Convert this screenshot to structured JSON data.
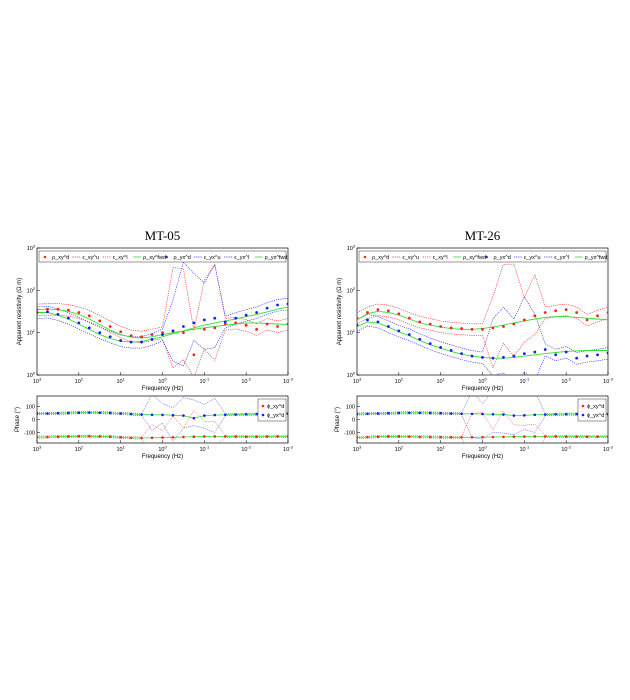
{
  "figure": {
    "colors": {
      "xy": "#ff2020",
      "yx": "#1a1aff",
      "fwd": "#33dd33"
    },
    "panels": [
      {
        "title": "MT-05"
      },
      {
        "title": "MT-26"
      }
    ]
  },
  "chart_data": [
    {
      "type": "scatter",
      "title": "MT-05",
      "subplot": "resistivity",
      "xlabel": "Frequency (Hz)",
      "ylabel": "Apparent resistivity (Ω m)",
      "xscale": "log",
      "xdirection": "decreasing",
      "xlim": [
        1000,
        0.001
      ],
      "ylim": [
        1,
        1000
      ],
      "yscale": "log",
      "xticks": [
        "10^3",
        "10^2",
        "10^1",
        "10^0",
        "10^-1",
        "10^-2",
        "10^-3"
      ],
      "yticks": [
        "10^0",
        "10^1",
        "10^2",
        "10^3"
      ],
      "legend": [
        "ρ_xy^d",
        "ϵ_xy^u",
        "ϵ_xy^l",
        "ρ_xy^fwd",
        "ρ_yx^d",
        "ϵ_yx^u",
        "ϵ_yx^l",
        "ρ_yx^fwd"
      ],
      "legend_position": "top",
      "x": [
        1000,
        562,
        316,
        178,
        100,
        56.2,
        31.6,
        17.8,
        10,
        5.62,
        3.16,
        1.78,
        1,
        0.562,
        0.316,
        0.178,
        0.1,
        0.0562,
        0.0316,
        0.0178,
        0.01,
        0.00562,
        0.00316,
        0.00178,
        0.001
      ],
      "series": [
        {
          "name": "ρ_xy^d",
          "values": [
            35,
            36,
            36,
            34,
            30,
            25,
            19,
            14,
            10.5,
            8.5,
            8,
            9,
            10,
            11,
            10,
            3,
            12,
            13,
            16,
            17,
            15,
            12,
            16,
            14,
            16
          ]
        },
        {
          "name": "ρ_xy^fwd",
          "values": [
            35,
            36,
            35,
            32,
            27,
            21,
            15.5,
            11.5,
            9,
            7.8,
            7.5,
            8,
            9,
            10,
            11,
            12,
            13,
            14,
            15,
            16,
            17,
            17,
            16.5,
            16,
            15.5
          ]
        },
        {
          "name": "ρ_yx^d",
          "values": [
            30,
            31,
            27,
            22,
            17,
            13,
            10,
            8,
            6.5,
            6,
            6,
            7,
            9,
            11,
            14,
            17,
            20,
            22,
            18,
            22,
            26,
            30,
            38,
            45,
            48
          ]
        },
        {
          "name": "ρ_yx^fwd",
          "values": [
            30,
            30,
            26,
            21,
            16,
            12,
            9,
            7.3,
            6.3,
            6,
            6.2,
            7,
            8,
            9.5,
            11,
            13,
            15,
            17,
            19,
            21,
            24,
            27,
            31,
            36,
            40
          ]
        }
      ]
    },
    {
      "type": "scatter",
      "title": "MT-05",
      "subplot": "phase",
      "xlabel": "Frequency (Hz)",
      "ylabel": "Phase (°)",
      "xscale": "log",
      "xdirection": "decreasing",
      "xlim": [
        1000,
        0.001
      ],
      "ylim": [
        -180,
        180
      ],
      "xticks": [
        "10^3",
        "10^2",
        "10^1",
        "10^0",
        "10^-1",
        "10^-2",
        "10^-3"
      ],
      "yticks": [
        "-100",
        "0",
        "100"
      ],
      "legend": [
        "ϕ_xy^d",
        "ϕ_yx^d"
      ],
      "legend_position": "top-right",
      "x": [
        1000,
        562,
        316,
        178,
        100,
        56.2,
        31.6,
        17.8,
        10,
        5.62,
        3.16,
        1.78,
        1,
        0.562,
        0.316,
        0.178,
        0.1,
        0.0562,
        0.0316,
        0.0178,
        0.01,
        0.00562,
        0.00316,
        0.00178,
        0.001
      ],
      "series": [
        {
          "name": "ϕ_xy^d",
          "values": [
            -135,
            -134,
            -132,
            -130,
            -128,
            -128,
            -130,
            -132,
            -136,
            -140,
            -142,
            -140,
            -138,
            -136,
            -134,
            -132,
            -130,
            -130,
            -130,
            -131,
            -132,
            -132,
            -131,
            -130,
            -130
          ]
        },
        {
          "name": "ϕ_yx^d",
          "values": [
            45,
            46,
            48,
            50,
            52,
            53,
            52,
            50,
            46,
            42,
            38,
            36,
            35,
            33,
            30,
            10,
            30,
            34,
            36,
            38,
            40,
            42,
            44,
            45,
            45
          ]
        }
      ]
    },
    {
      "type": "scatter",
      "title": "MT-26",
      "subplot": "resistivity",
      "xlabel": "Frequency (Hz)",
      "ylabel": "Apparent resistivity (Ω m)",
      "xscale": "log",
      "xdirection": "decreasing",
      "xlim": [
        1000,
        0.001
      ],
      "ylim": [
        1,
        1000
      ],
      "yscale": "log",
      "xticks": [
        "10^3",
        "10^2",
        "10^1",
        "10^0",
        "10^-1",
        "10^-2",
        "10^-3"
      ],
      "yticks": [
        "10^0",
        "10^1",
        "10^2",
        "10^3"
      ],
      "legend": [
        "ρ_xy^d",
        "ϵ_xy^u",
        "ϵ_xy^l",
        "ρ_xy^fwd",
        "ρ_yx^d",
        "ϵ_yx^u",
        "ϵ_yx^l",
        "ρ_yx^fwd"
      ],
      "legend_position": "top",
      "x": [
        1000,
        562,
        316,
        178,
        100,
        56.2,
        31.6,
        17.8,
        10,
        5.62,
        3.16,
        1.78,
        1,
        0.562,
        0.316,
        0.178,
        0.1,
        0.0562,
        0.0316,
        0.0178,
        0.01,
        0.00562,
        0.00316,
        0.00178,
        0.001
      ],
      "series": [
        {
          "name": "ρ_xy^d",
          "values": [
            22,
            30,
            35,
            33,
            28,
            22,
            18,
            16,
            14,
            13,
            12.5,
            12,
            12,
            13,
            14,
            16,
            20,
            25,
            30,
            33,
            35,
            30,
            20,
            25,
            30
          ]
        },
        {
          "name": "ρ_xy^fwd",
          "values": [
            20,
            28,
            32,
            30,
            26,
            21,
            17,
            15,
            13.5,
            12.5,
            12,
            12,
            12.5,
            13.5,
            15,
            17,
            19,
            21,
            23,
            24,
            24,
            23,
            22,
            21,
            20
          ]
        },
        {
          "name": "ρ_yx^d",
          "values": [
            15,
            20,
            18,
            14,
            11,
            9,
            7,
            5.5,
            4.5,
            3.8,
            3.2,
            2.8,
            2.6,
            2.5,
            2.6,
            2.8,
            3.2,
            3.5,
            4,
            3,
            3.5,
            2.5,
            2.8,
            3,
            3.3
          ]
        },
        {
          "name": "ρ_yx^fwd",
          "values": [
            14,
            18,
            17,
            13.5,
            10.5,
            8.5,
            6.5,
            5.2,
            4.3,
            3.6,
            3.1,
            2.8,
            2.6,
            2.5,
            2.5,
            2.6,
            2.8,
            3,
            3.2,
            3.4,
            3.6,
            3.7,
            3.8,
            3.8,
            3.8
          ]
        }
      ]
    },
    {
      "type": "scatter",
      "title": "MT-26",
      "subplot": "phase",
      "xlabel": "Frequency (Hz)",
      "ylabel": "Phase (°)",
      "xscale": "log",
      "xdirection": "decreasing",
      "xlim": [
        1000,
        0.001
      ],
      "ylim": [
        -180,
        180
      ],
      "xticks": [
        "10^3",
        "10^2",
        "10^1",
        "10^0",
        "10^-1",
        "10^-2",
        "10^-3"
      ],
      "yticks": [
        "-100",
        "0",
        "100"
      ],
      "legend": [
        "ϕ_xy^d",
        "ϕ_yx^d"
      ],
      "legend_position": "top-right",
      "x": [
        1000,
        562,
        316,
        178,
        100,
        56.2,
        31.6,
        17.8,
        10,
        5.62,
        3.16,
        1.78,
        1,
        0.562,
        0.316,
        0.178,
        0.1,
        0.0562,
        0.0316,
        0.0178,
        0.01,
        0.00562,
        0.00316,
        0.00178,
        0.001
      ],
      "series": [
        {
          "name": "ϕ_xy^d",
          "values": [
            -138,
            -135,
            -132,
            -130,
            -130,
            -131,
            -133,
            -134,
            -135,
            -136,
            -136,
            -136,
            -135,
            -134,
            -133,
            -132,
            -131,
            -130,
            -130,
            -130,
            -131,
            -131,
            -132,
            -132,
            -132
          ]
        },
        {
          "name": "ϕ_yx^d",
          "values": [
            42,
            44,
            46,
            48,
            50,
            51,
            51,
            50,
            48,
            46,
            44,
            43,
            42,
            40,
            38,
            30,
            32,
            36,
            38,
            40,
            41,
            42,
            42,
            42,
            42
          ]
        }
      ]
    }
  ]
}
